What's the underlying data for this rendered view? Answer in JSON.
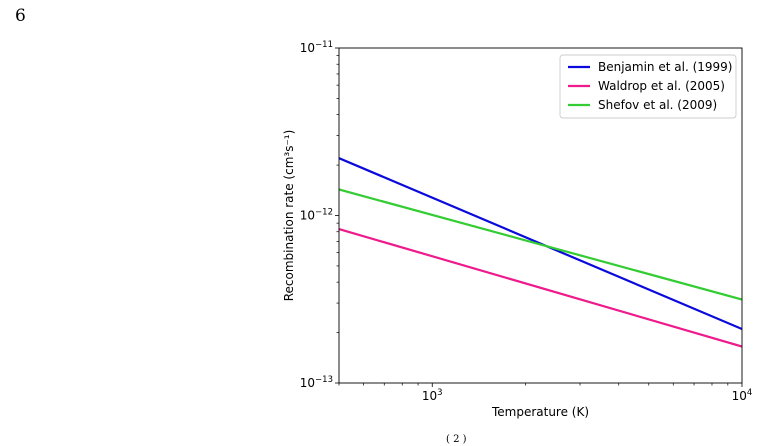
{
  "page": {
    "number": "6",
    "footer_fragment": "( 2 )"
  },
  "chart_data": {
    "type": "line",
    "x_scale": "log",
    "y_scale": "log",
    "xlabel": "Temperature (K)",
    "ylabel": "Recombination rate (cm³s⁻¹)",
    "xlim": [
      500,
      10000
    ],
    "ylim": [
      1e-13,
      1e-11
    ],
    "x_ticks": [
      {
        "value": 1000,
        "base": "10",
        "exp": "3"
      },
      {
        "value": 10000,
        "base": "10",
        "exp": "4"
      }
    ],
    "y_ticks": [
      {
        "value": 1e-11,
        "base": "10",
        "exp": "−11"
      },
      {
        "value": 1e-12,
        "base": "10",
        "exp": "−12"
      },
      {
        "value": 1e-13,
        "base": "10",
        "exp": "−13"
      }
    ],
    "grid": false,
    "legend_placement": "top-right",
    "series": [
      {
        "name": "Benjamin et al. (1999)",
        "color": "#0a0adc",
        "x": [
          500,
          10000
        ],
        "y": [
          2.2e-12,
          2.1e-13
        ]
      },
      {
        "name": "Waldrop et al. (2005)",
        "color": "#ee1b8c",
        "x": [
          500,
          10000
        ],
        "y": [
          8.3e-13,
          1.65e-13
        ]
      },
      {
        "name": "Shefov et al. (2009)",
        "color": "#33cc33",
        "x": [
          500,
          10000
        ],
        "y": [
          1.43e-12,
          3.15e-13
        ]
      }
    ]
  }
}
